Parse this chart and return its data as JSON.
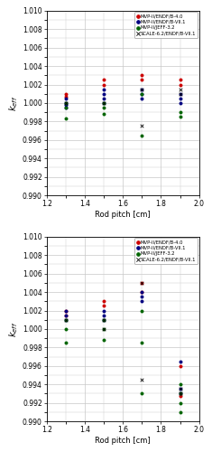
{
  "legend_labels": [
    "MVP-II/ENDF/B-4.0",
    "MVP-II/ENDF/B-VII.1",
    "MVP-II/JEFF-3.2",
    "SCALE-6.2/ENDF/B-VII.1"
  ],
  "upper": {
    "series": {
      "red": {
        "x": [
          1.3,
          1.3,
          1.5,
          1.5,
          1.7,
          1.7,
          1.9,
          1.9
        ],
        "y": [
          1.001,
          1.0007,
          1.0025,
          1.002,
          1.003,
          1.0025,
          1.0025,
          1.002
        ]
      },
      "darkblue": {
        "x": [
          1.3,
          1.3,
          1.3,
          1.3,
          1.5,
          1.5,
          1.5,
          1.5,
          1.7,
          1.7,
          1.7,
          1.9,
          1.9,
          1.9
        ],
        "y": [
          1.0005,
          1.0,
          0.9998,
          0.9995,
          1.0015,
          1.001,
          1.0005,
          1.0,
          1.0015,
          1.001,
          1.0005,
          1.001,
          1.0005,
          1.0
        ]
      },
      "green": {
        "x": [
          1.3,
          1.3,
          1.3,
          1.5,
          1.5,
          1.5,
          1.7,
          1.7,
          1.9,
          1.9
        ],
        "y": [
          1.0,
          0.9995,
          0.9983,
          1.0,
          0.9995,
          0.9988,
          1.001,
          0.9965,
          0.999,
          0.9985
        ]
      },
      "cross": {
        "x": [
          1.3,
          1.5,
          1.7,
          1.7,
          1.9,
          1.9
        ],
        "y": [
          1.0,
          1.0,
          1.0015,
          0.9975,
          1.0015,
          1.001
        ]
      }
    }
  },
  "lower": {
    "series": {
      "red": {
        "x": [
          1.3,
          1.3,
          1.5,
          1.5,
          1.7,
          1.7,
          1.9,
          1.9
        ],
        "y": [
          1.002,
          1.0015,
          1.003,
          1.0025,
          1.005,
          1.004,
          0.996,
          0.9927
        ]
      },
      "darkblue": {
        "x": [
          1.3,
          1.3,
          1.3,
          1.5,
          1.5,
          1.5,
          1.7,
          1.7,
          1.7,
          1.9,
          1.9,
          1.9
        ],
        "y": [
          1.002,
          1.0015,
          1.001,
          1.002,
          1.0015,
          1.001,
          1.004,
          1.0035,
          1.003,
          0.9965,
          0.9935,
          0.993
        ]
      },
      "green": {
        "x": [
          1.3,
          1.3,
          1.3,
          1.5,
          1.5,
          1.5,
          1.7,
          1.7,
          1.7,
          1.9,
          1.9,
          1.9,
          1.9
        ],
        "y": [
          1.001,
          1.0,
          0.9985,
          1.001,
          1.0,
          0.9988,
          1.002,
          0.9985,
          0.993,
          0.994,
          0.993,
          0.992,
          0.991
        ]
      },
      "cross": {
        "x": [
          1.3,
          1.5,
          1.5,
          1.7,
          1.7,
          1.9,
          1.9
        ],
        "y": [
          1.001,
          1.001,
          1.0,
          1.005,
          0.9945,
          0.9935,
          0.993
        ]
      }
    }
  },
  "ylim": [
    0.99,
    1.01
  ],
  "xlim": [
    1.2,
    2.0
  ],
  "yticks": [
    0.99,
    0.992,
    0.994,
    0.996,
    0.998,
    1.0,
    1.002,
    1.004,
    1.006,
    1.008,
    1.01
  ],
  "xticks": [
    1.2,
    1.4,
    1.6,
    1.8,
    2.0
  ],
  "xlabel": "Rod pitch [cm]",
  "grid_color": "#c8c8c8",
  "background": "#ffffff",
  "colors_map": {
    "red": "#cc0000",
    "darkblue": "#000080",
    "green": "#006400",
    "cross": "#000000"
  }
}
